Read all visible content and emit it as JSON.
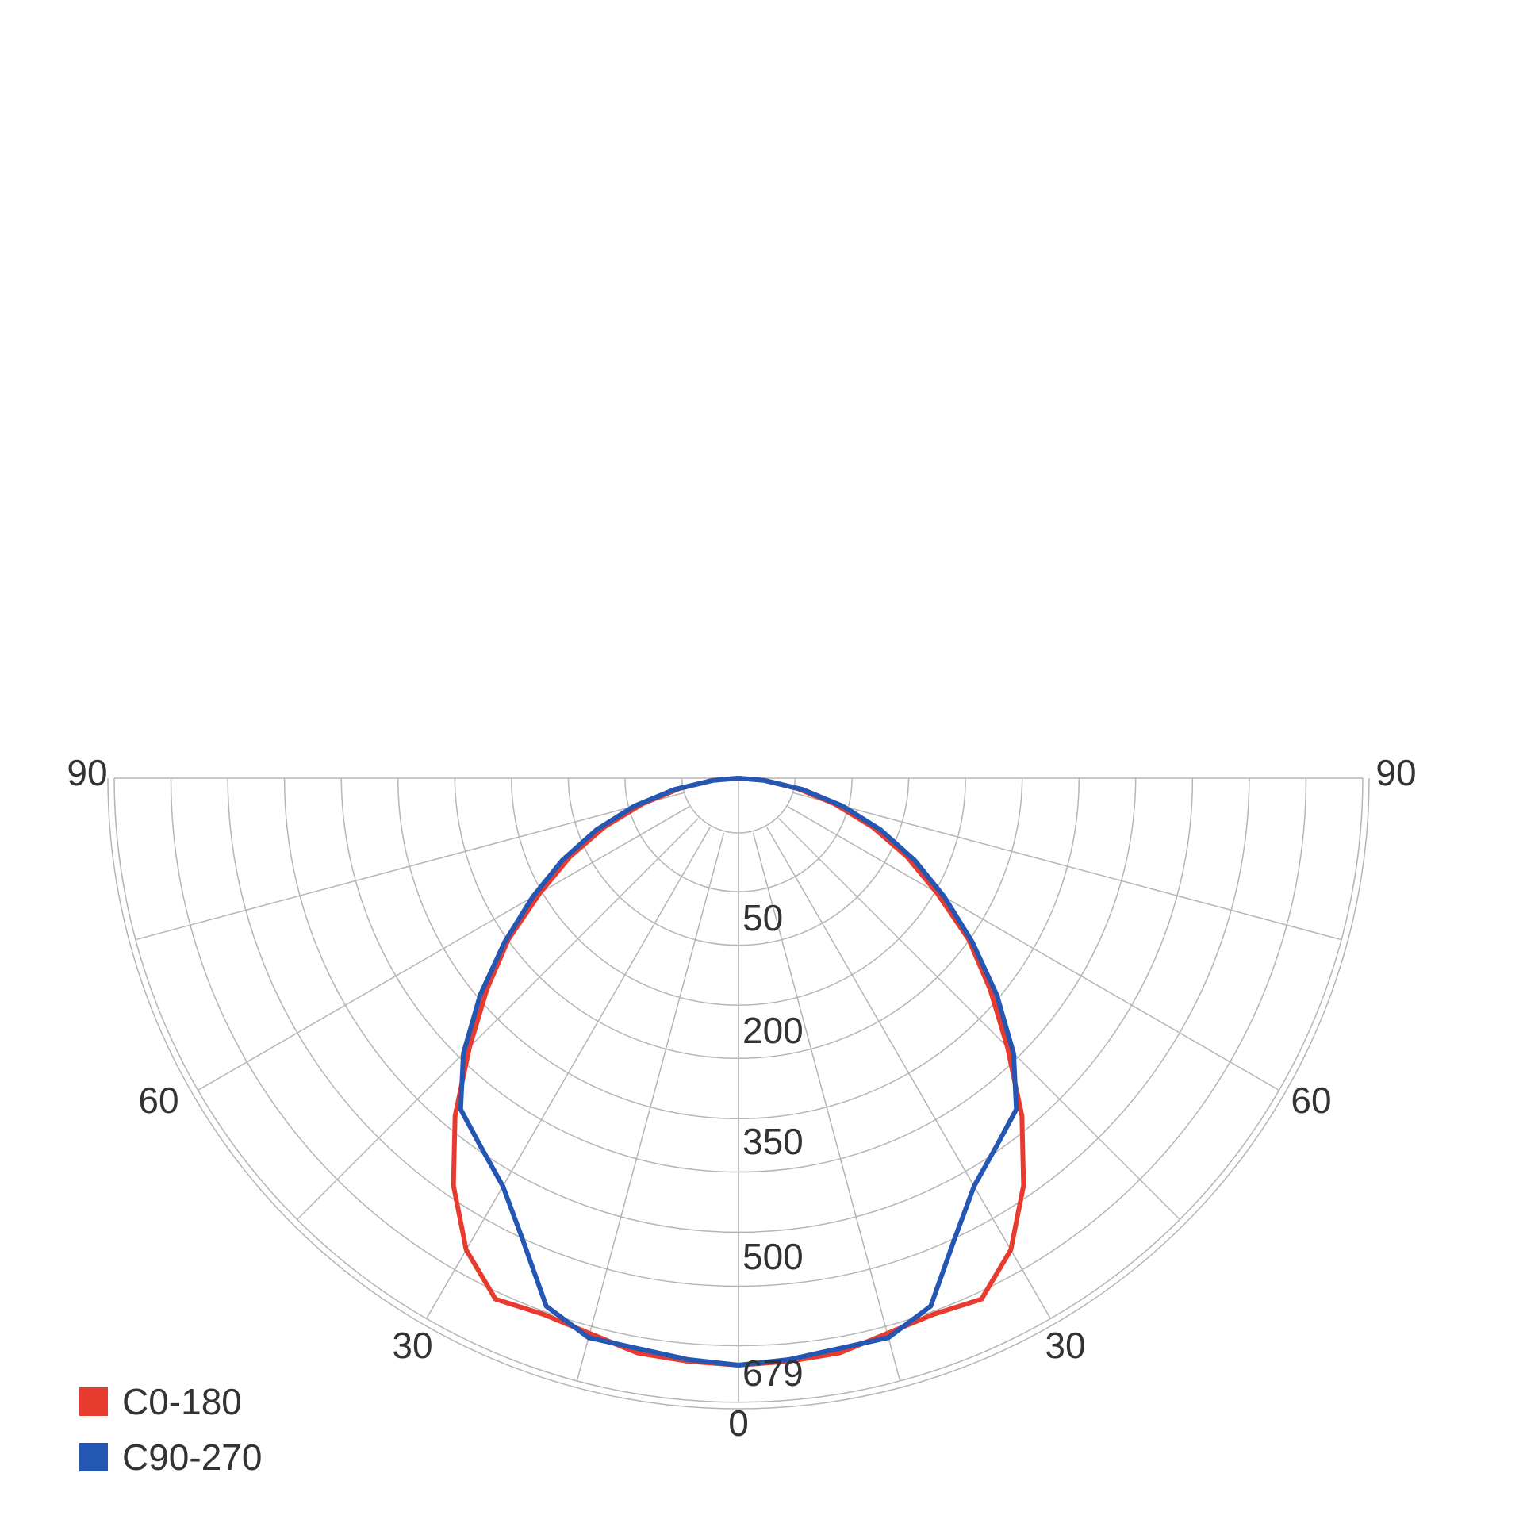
{
  "chart_data": {
    "type": "polar",
    "angle_ticks": [
      "90",
      "60",
      "30",
      "0",
      "30",
      "60",
      "90"
    ],
    "radial_ticks": [
      "50",
      "200",
      "350",
      "500",
      "679"
    ],
    "rmax": 679,
    "grid": true,
    "legend_position": "bottom-left",
    "series": [
      {
        "name": "C0-180",
        "color": "#e63b2e",
        "angles": [
          -90,
          -85,
          -80,
          -75,
          -70,
          -65,
          -60,
          -55,
          -50,
          -45,
          -40,
          -35,
          -30,
          -25,
          -20,
          -15,
          -10,
          -5,
          0,
          5,
          10,
          15,
          20,
          25,
          30,
          35,
          40,
          45,
          50,
          55,
          60,
          65,
          70,
          75,
          80,
          85,
          90
        ],
        "values": [
          0,
          30,
          70,
          115,
          165,
          215,
          265,
          325,
          380,
          440,
          510,
          575,
          630,
          665,
          660,
          665,
          675,
          677,
          679,
          677,
          675,
          665,
          660,
          665,
          630,
          575,
          510,
          440,
          380,
          325,
          265,
          215,
          165,
          115,
          70,
          30,
          0
        ]
      },
      {
        "name": "C90-270",
        "color": "#2456b3",
        "angles": [
          -90,
          -85,
          -80,
          -75,
          -70,
          -65,
          -60,
          -55,
          -50,
          -45,
          -40,
          -35,
          -30,
          -25,
          -20,
          -15,
          -10,
          -5,
          0,
          5,
          10,
          15,
          20,
          25,
          30,
          35,
          40,
          45,
          50,
          55,
          60,
          65,
          70,
          75,
          80,
          85,
          90
        ],
        "values": [
          0,
          30,
          75,
          125,
          175,
          225,
          275,
          330,
          390,
          450,
          500,
          520,
          545,
          590,
          650,
          670,
          670,
          675,
          679,
          675,
          670,
          670,
          650,
          590,
          545,
          520,
          500,
          450,
          390,
          330,
          275,
          225,
          175,
          125,
          75,
          30,
          0
        ]
      }
    ]
  }
}
